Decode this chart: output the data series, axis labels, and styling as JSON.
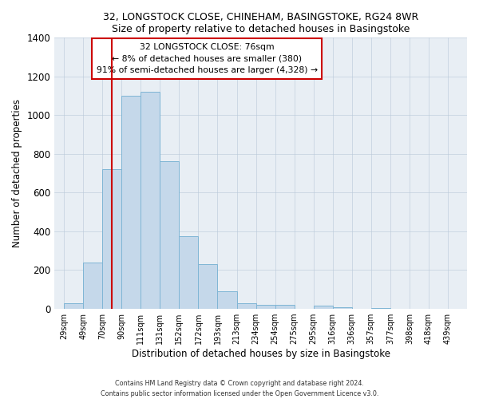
{
  "title": "32, LONGSTOCK CLOSE, CHINEHAM, BASINGSTOKE, RG24 8WR",
  "subtitle": "Size of property relative to detached houses in Basingstoke",
  "xlabel": "Distribution of detached houses by size in Basingstoke",
  "ylabel": "Number of detached properties",
  "bar_labels": [
    "29sqm",
    "49sqm",
    "70sqm",
    "90sqm",
    "111sqm",
    "131sqm",
    "152sqm",
    "172sqm",
    "193sqm",
    "213sqm",
    "234sqm",
    "254sqm",
    "275sqm",
    "295sqm",
    "316sqm",
    "336sqm",
    "357sqm",
    "377sqm",
    "398sqm",
    "418sqm",
    "439sqm"
  ],
  "bar_values": [
    30,
    240,
    720,
    1100,
    1120,
    760,
    375,
    230,
    90,
    30,
    20,
    20,
    0,
    15,
    10,
    0,
    5,
    0,
    0,
    0,
    0
  ],
  "bar_color": "#c5d8ea",
  "bar_edge_color": "#7fb5d5",
  "vline_color": "#cc0000",
  "ylim": [
    0,
    1400
  ],
  "yticks": [
    0,
    200,
    400,
    600,
    800,
    1000,
    1200,
    1400
  ],
  "annotation_title": "32 LONGSTOCK CLOSE: 76sqm",
  "annotation_line1": "← 8% of detached houses are smaller (380)",
  "annotation_line2": "91% of semi-detached houses are larger (4,328) →",
  "annotation_box_color": "#cc0000",
  "footer1": "Contains HM Land Registry data © Crown copyright and database right 2024.",
  "footer2": "Contains public sector information licensed under the Open Government Licence v3.0.",
  "plot_bg_color": "#e8eef4",
  "fig_bg_color": "#ffffff"
}
